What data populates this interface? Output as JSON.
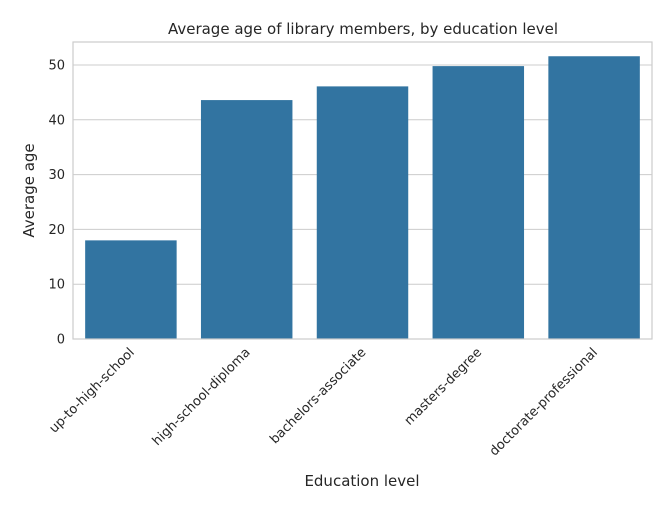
{
  "chart_data": {
    "type": "bar",
    "title": "Average age of library members, by education level",
    "xlabel": "Education level",
    "ylabel": "Average age",
    "categories": [
      "up-to-high-school",
      "high-school-diploma",
      "bachelors-associate",
      "masters-degree",
      "doctorate-professional"
    ],
    "values": [
      18.0,
      43.6,
      46.1,
      49.8,
      51.6
    ],
    "ylim": [
      0,
      54.2
    ],
    "yticks": [
      0,
      10,
      20,
      30,
      40,
      50
    ],
    "grid": true,
    "bar_color": "#3274a1"
  }
}
